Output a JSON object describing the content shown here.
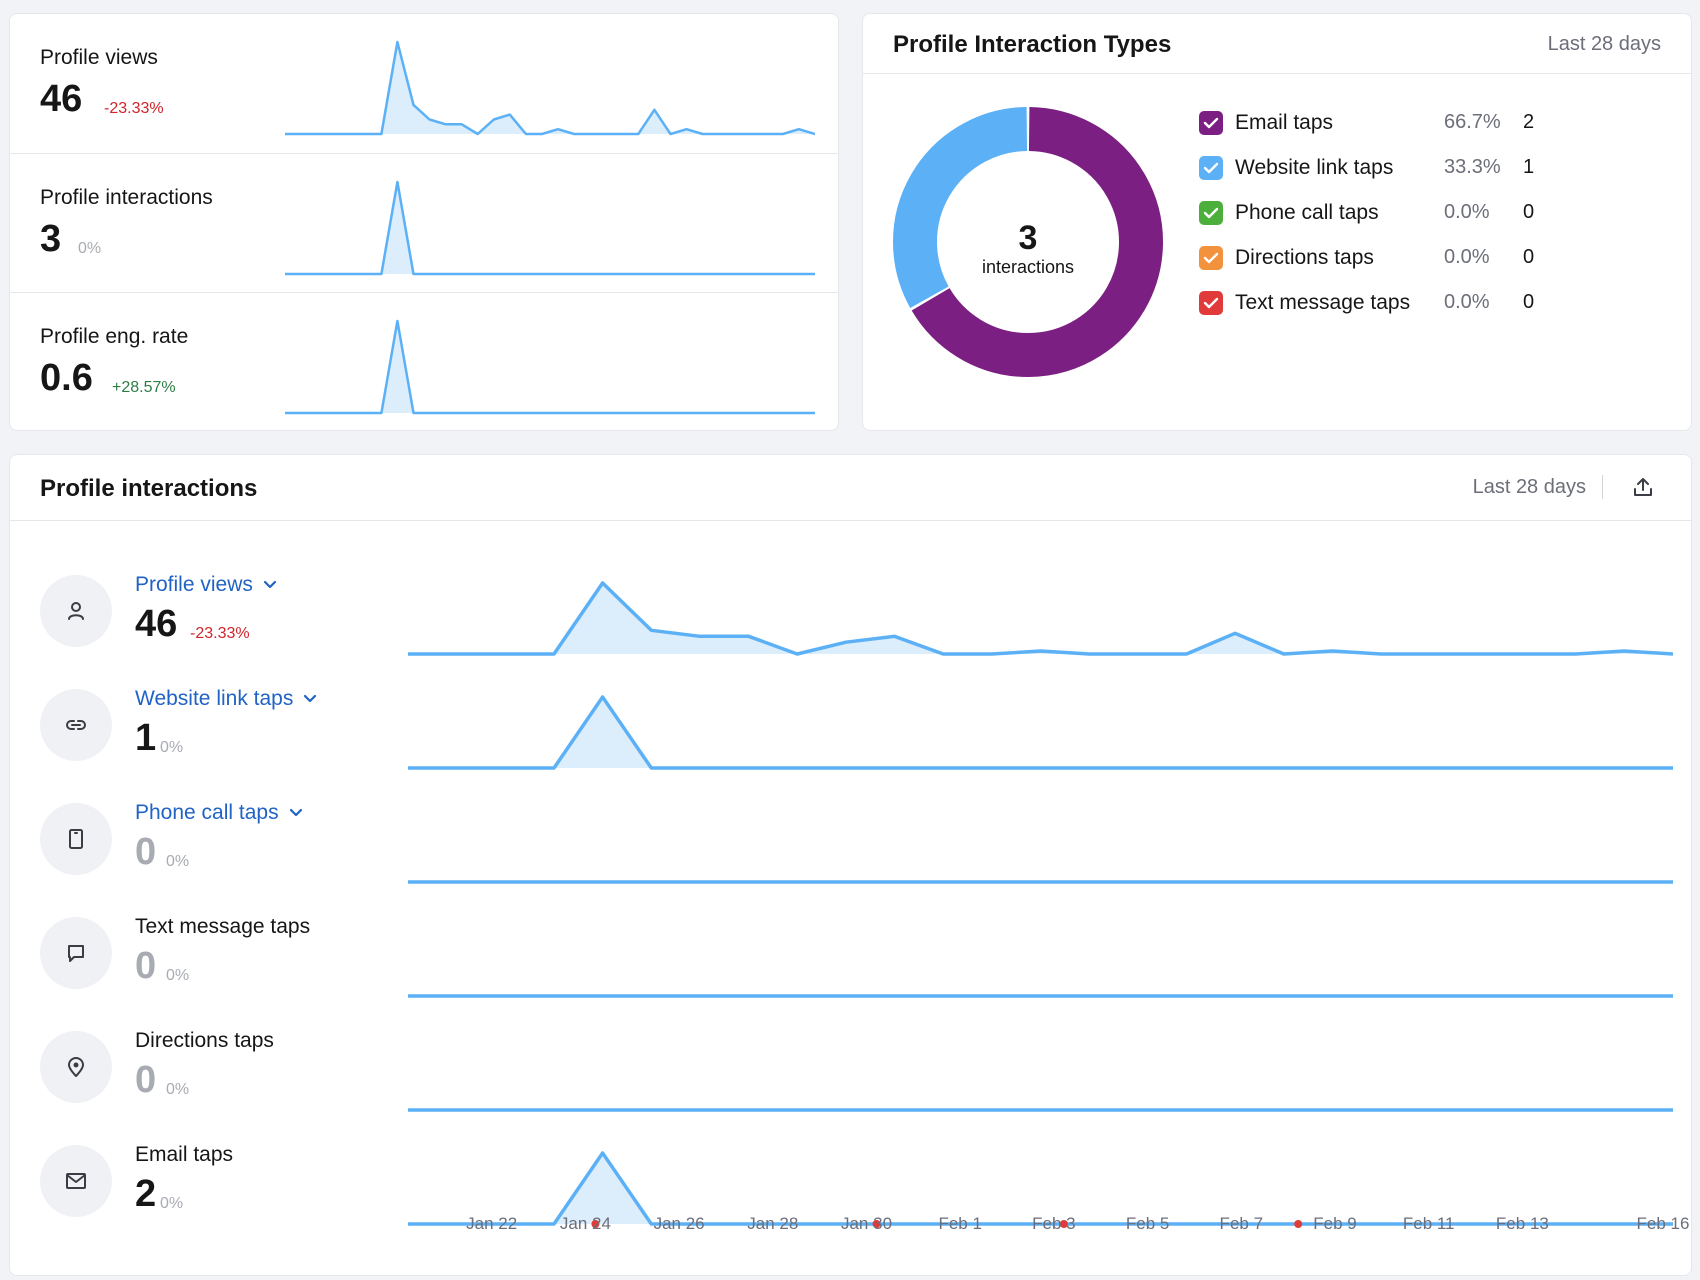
{
  "metrics": [
    {
      "label": "Profile views",
      "value": "46",
      "change": "-23.33%",
      "change_type": "negative",
      "series": [
        0,
        0,
        0,
        0,
        0,
        0,
        0,
        38,
        12,
        6,
        4,
        4,
        0,
        6,
        8,
        0,
        0,
        2,
        0,
        0,
        0,
        0,
        0,
        10,
        0,
        2,
        0,
        0,
        0,
        0,
        0,
        0,
        2,
        0
      ]
    },
    {
      "label": "Profile interactions",
      "value": "3",
      "change": "0%",
      "change_type": "neutral",
      "series": [
        0,
        0,
        0,
        0,
        0,
        0,
        0,
        3,
        0,
        0,
        0,
        0,
        0,
        0,
        0,
        0,
        0,
        0,
        0,
        0,
        0,
        0,
        0,
        0,
        0,
        0,
        0,
        0,
        0,
        0,
        0,
        0,
        0,
        0
      ]
    },
    {
      "label": "Profile eng. rate",
      "value": "0.6",
      "change": "+28.57%",
      "change_type": "positive",
      "series": [
        0,
        0,
        0,
        0,
        0,
        0,
        0,
        3,
        0,
        0,
        0,
        0,
        0,
        0,
        0,
        0,
        0,
        0,
        0,
        0,
        0,
        0,
        0,
        0,
        0,
        0,
        0,
        0,
        0,
        0,
        0,
        0,
        0,
        0
      ]
    }
  ],
  "interaction_types": {
    "title": "Profile Interaction Types",
    "range": "Last 28 days",
    "total": "3",
    "total_label": "interactions",
    "items": [
      {
        "name": "Email taps",
        "pct": "66.7%",
        "count": "2",
        "share": 66.7,
        "color": "#7b1f82"
      },
      {
        "name": "Website link taps",
        "pct": "33.3%",
        "count": "1",
        "share": 33.3,
        "color": "#5cb1f6"
      },
      {
        "name": "Phone call taps",
        "pct": "0.0%",
        "count": "0",
        "share": 0,
        "color": "#4caf3c"
      },
      {
        "name": "Directions taps",
        "pct": "0.0%",
        "count": "0",
        "share": 0,
        "color": "#f3923d"
      },
      {
        "name": "Text message taps",
        "pct": "0.0%",
        "count": "0",
        "share": 0,
        "color": "#e03a3a"
      }
    ]
  },
  "profile_interactions": {
    "title": "Profile interactions",
    "range": "Last 28 days",
    "rows": [
      {
        "label": "Profile views",
        "value": "46",
        "change": "-23.33%",
        "linked": true,
        "icon": "person-icon",
        "series": [
          0,
          0,
          0,
          0,
          12,
          4,
          3,
          3,
          0,
          2,
          3,
          0,
          0,
          0.5,
          0,
          0,
          0,
          3.5,
          0,
          0.5,
          0,
          0,
          0,
          0,
          0,
          0.5,
          0
        ]
      },
      {
        "label": "Website link taps",
        "value": "1",
        "change": "0%",
        "linked": true,
        "icon": "link-icon",
        "series": [
          0,
          0,
          0,
          0,
          1,
          0,
          0,
          0,
          0,
          0,
          0,
          0,
          0,
          0,
          0,
          0,
          0,
          0,
          0,
          0,
          0,
          0,
          0,
          0,
          0,
          0,
          0
        ]
      },
      {
        "label": "Phone call taps",
        "value": "0",
        "change": "0%",
        "linked": true,
        "icon": "phone-icon",
        "series": [
          0,
          0,
          0,
          0,
          0,
          0,
          0,
          0,
          0,
          0,
          0,
          0,
          0,
          0,
          0,
          0,
          0,
          0,
          0,
          0,
          0,
          0,
          0,
          0,
          0,
          0,
          0
        ]
      },
      {
        "label": "Text message taps",
        "value": "0",
        "change": "0%",
        "linked": false,
        "icon": "message-icon",
        "series": [
          0,
          0,
          0,
          0,
          0,
          0,
          0,
          0,
          0,
          0,
          0,
          0,
          0,
          0,
          0,
          0,
          0,
          0,
          0,
          0,
          0,
          0,
          0,
          0,
          0,
          0,
          0
        ]
      },
      {
        "label": "Directions taps",
        "value": "0",
        "change": "0%",
        "linked": false,
        "icon": "location-pin-icon",
        "series": [
          0,
          0,
          0,
          0,
          0,
          0,
          0,
          0,
          0,
          0,
          0,
          0,
          0,
          0,
          0,
          0,
          0,
          0,
          0,
          0,
          0,
          0,
          0,
          0,
          0,
          0,
          0
        ]
      },
      {
        "label": "Email taps",
        "value": "2",
        "change": "0%",
        "linked": false,
        "icon": "mail-icon",
        "series": [
          0,
          0,
          0,
          0,
          2,
          0,
          0,
          0,
          0,
          0,
          0,
          0,
          0,
          0,
          0,
          0,
          0,
          0,
          0,
          0,
          0,
          0,
          0,
          0,
          0,
          0,
          0
        ],
        "markers": [
          "Jan 24",
          "Jan 30",
          "Feb 3",
          "Feb 8"
        ]
      }
    ],
    "x_ticks": [
      "Jan 22",
      "Jan 24",
      "Jan 26",
      "Jan 28",
      "Jan 30",
      "Feb 1",
      "Feb 3",
      "Feb 5",
      "Feb 7",
      "Feb 9",
      "Feb 11",
      "Feb 13",
      "Feb 16"
    ]
  },
  "colors": {
    "line": "#5cb1f6",
    "fill": "#dcedfb",
    "negative": "#d0242b",
    "positive": "#2e7d46",
    "neutral": "#a9abb3",
    "marker": "#e03a3a"
  }
}
